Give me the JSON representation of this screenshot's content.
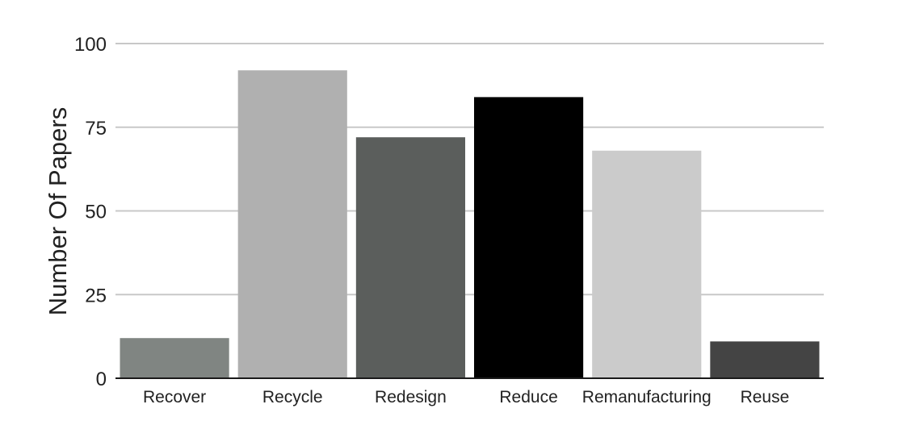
{
  "chart_data": {
    "type": "bar",
    "title": "",
    "xlabel": "",
    "ylabel": "Number Of Papers",
    "categories": [
      "Recover",
      "Recycle",
      "Redesign",
      "Reduce",
      "Remanufacturing",
      "Reuse"
    ],
    "values": [
      12,
      92,
      72,
      84,
      68,
      11
    ],
    "ylim": [
      0,
      100
    ],
    "yticks": [
      0,
      25,
      50,
      75,
      100
    ],
    "grid": true,
    "legend": "none",
    "bar_colors": [
      "#808582",
      "#b0b0b0",
      "#5b5e5c",
      "#000000",
      "#cbcbcb",
      "#444444"
    ]
  }
}
